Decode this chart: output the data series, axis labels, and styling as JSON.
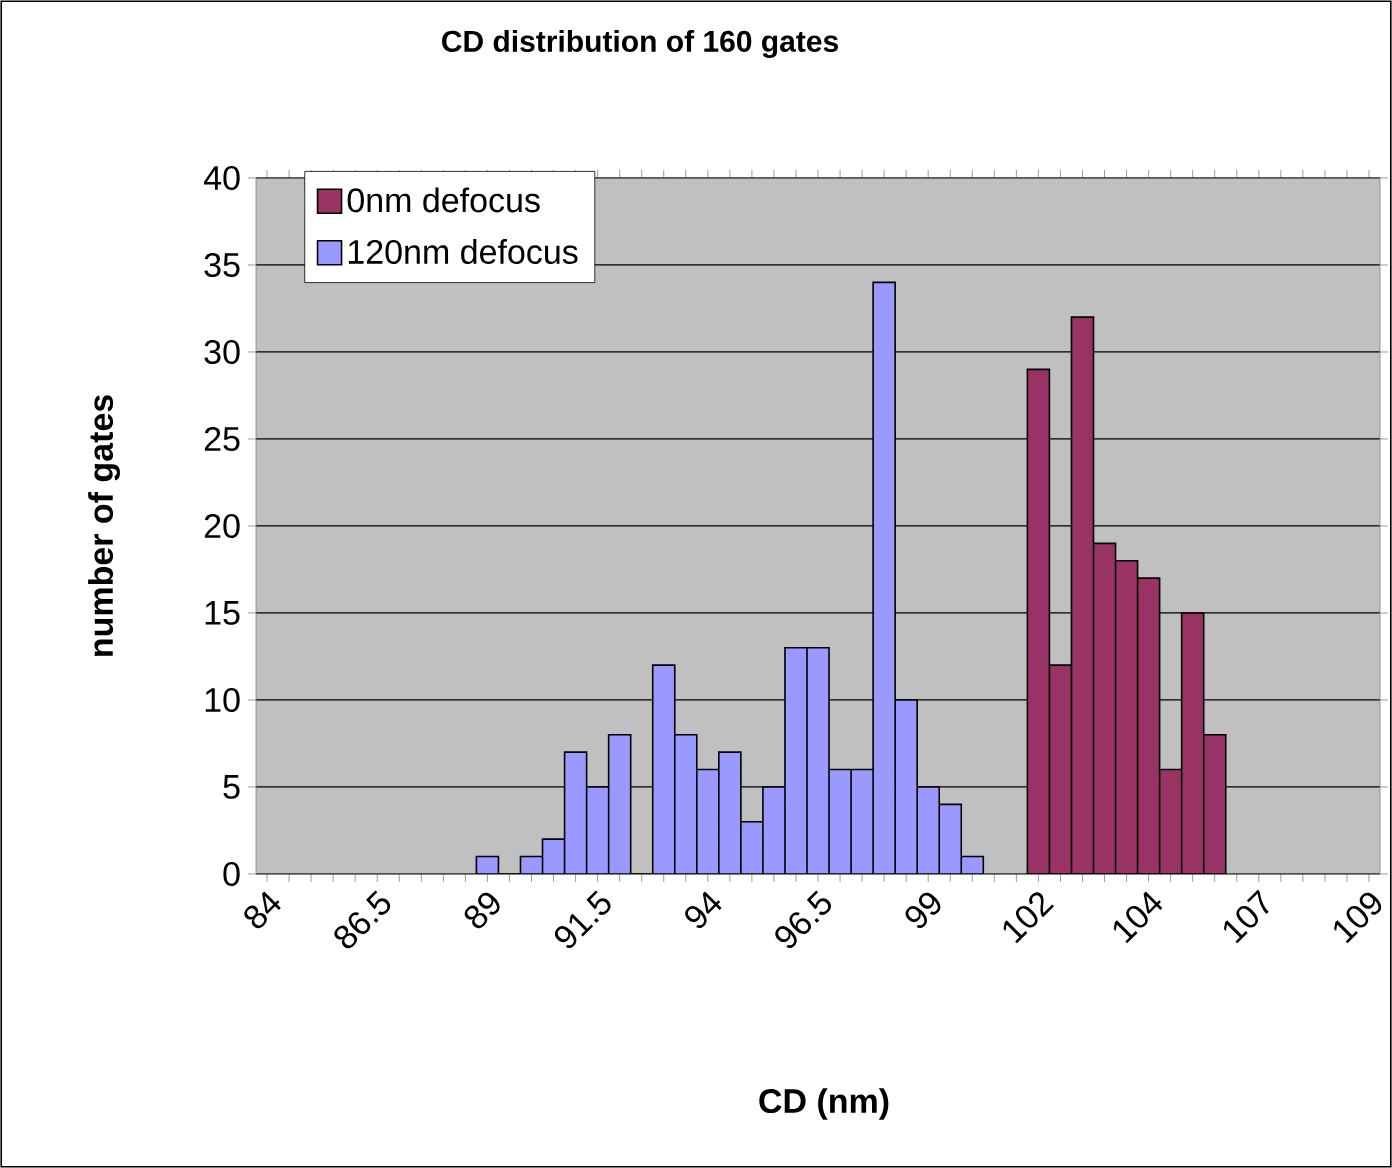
{
  "chart_data": {
    "type": "bar",
    "title": "CD distribution of 160 gates",
    "xlabel": "CD (nm)",
    "ylabel": "number of gates",
    "categories": [
      "84",
      null,
      null,
      null,
      null,
      "86.5",
      null,
      null,
      null,
      null,
      "89",
      null,
      null,
      null,
      null,
      "91.5",
      null,
      null,
      null,
      null,
      "94",
      null,
      null,
      null,
      null,
      "96.5",
      null,
      null,
      null,
      null,
      "99",
      null,
      null,
      null,
      null,
      "102",
      null,
      null,
      null,
      null,
      "104",
      null,
      null,
      null,
      null,
      "107",
      null,
      null,
      null,
      null,
      "109"
    ],
    "series": [
      {
        "name": "0nm defocus",
        "color": "#993366",
        "values": [
          null,
          null,
          null,
          null,
          null,
          null,
          null,
          null,
          null,
          null,
          null,
          null,
          null,
          null,
          null,
          null,
          null,
          null,
          null,
          null,
          null,
          null,
          null,
          null,
          null,
          null,
          null,
          null,
          null,
          null,
          null,
          null,
          null,
          null,
          null,
          29,
          12,
          32,
          19,
          18,
          17,
          6,
          15,
          8,
          null,
          null,
          null,
          null,
          null,
          null,
          null
        ]
      },
      {
        "name": "120nm defocus",
        "color": "#9999ff",
        "values": [
          null,
          null,
          null,
          null,
          null,
          null,
          null,
          null,
          null,
          null,
          1,
          0,
          1,
          2,
          7,
          5,
          8,
          0,
          12,
          8,
          6,
          7,
          3,
          5,
          13,
          13,
          6,
          6,
          34,
          10,
          5,
          4,
          1,
          null,
          null,
          null,
          null,
          null,
          null,
          null,
          null,
          null,
          null,
          null,
          null,
          null,
          null,
          null,
          null,
          null,
          null
        ]
      }
    ],
    "ylim": [
      0,
      40
    ],
    "yticks": [
      0,
      5,
      10,
      15,
      20,
      25,
      30,
      35,
      40
    ],
    "grid": "y",
    "legend": "top left"
  }
}
